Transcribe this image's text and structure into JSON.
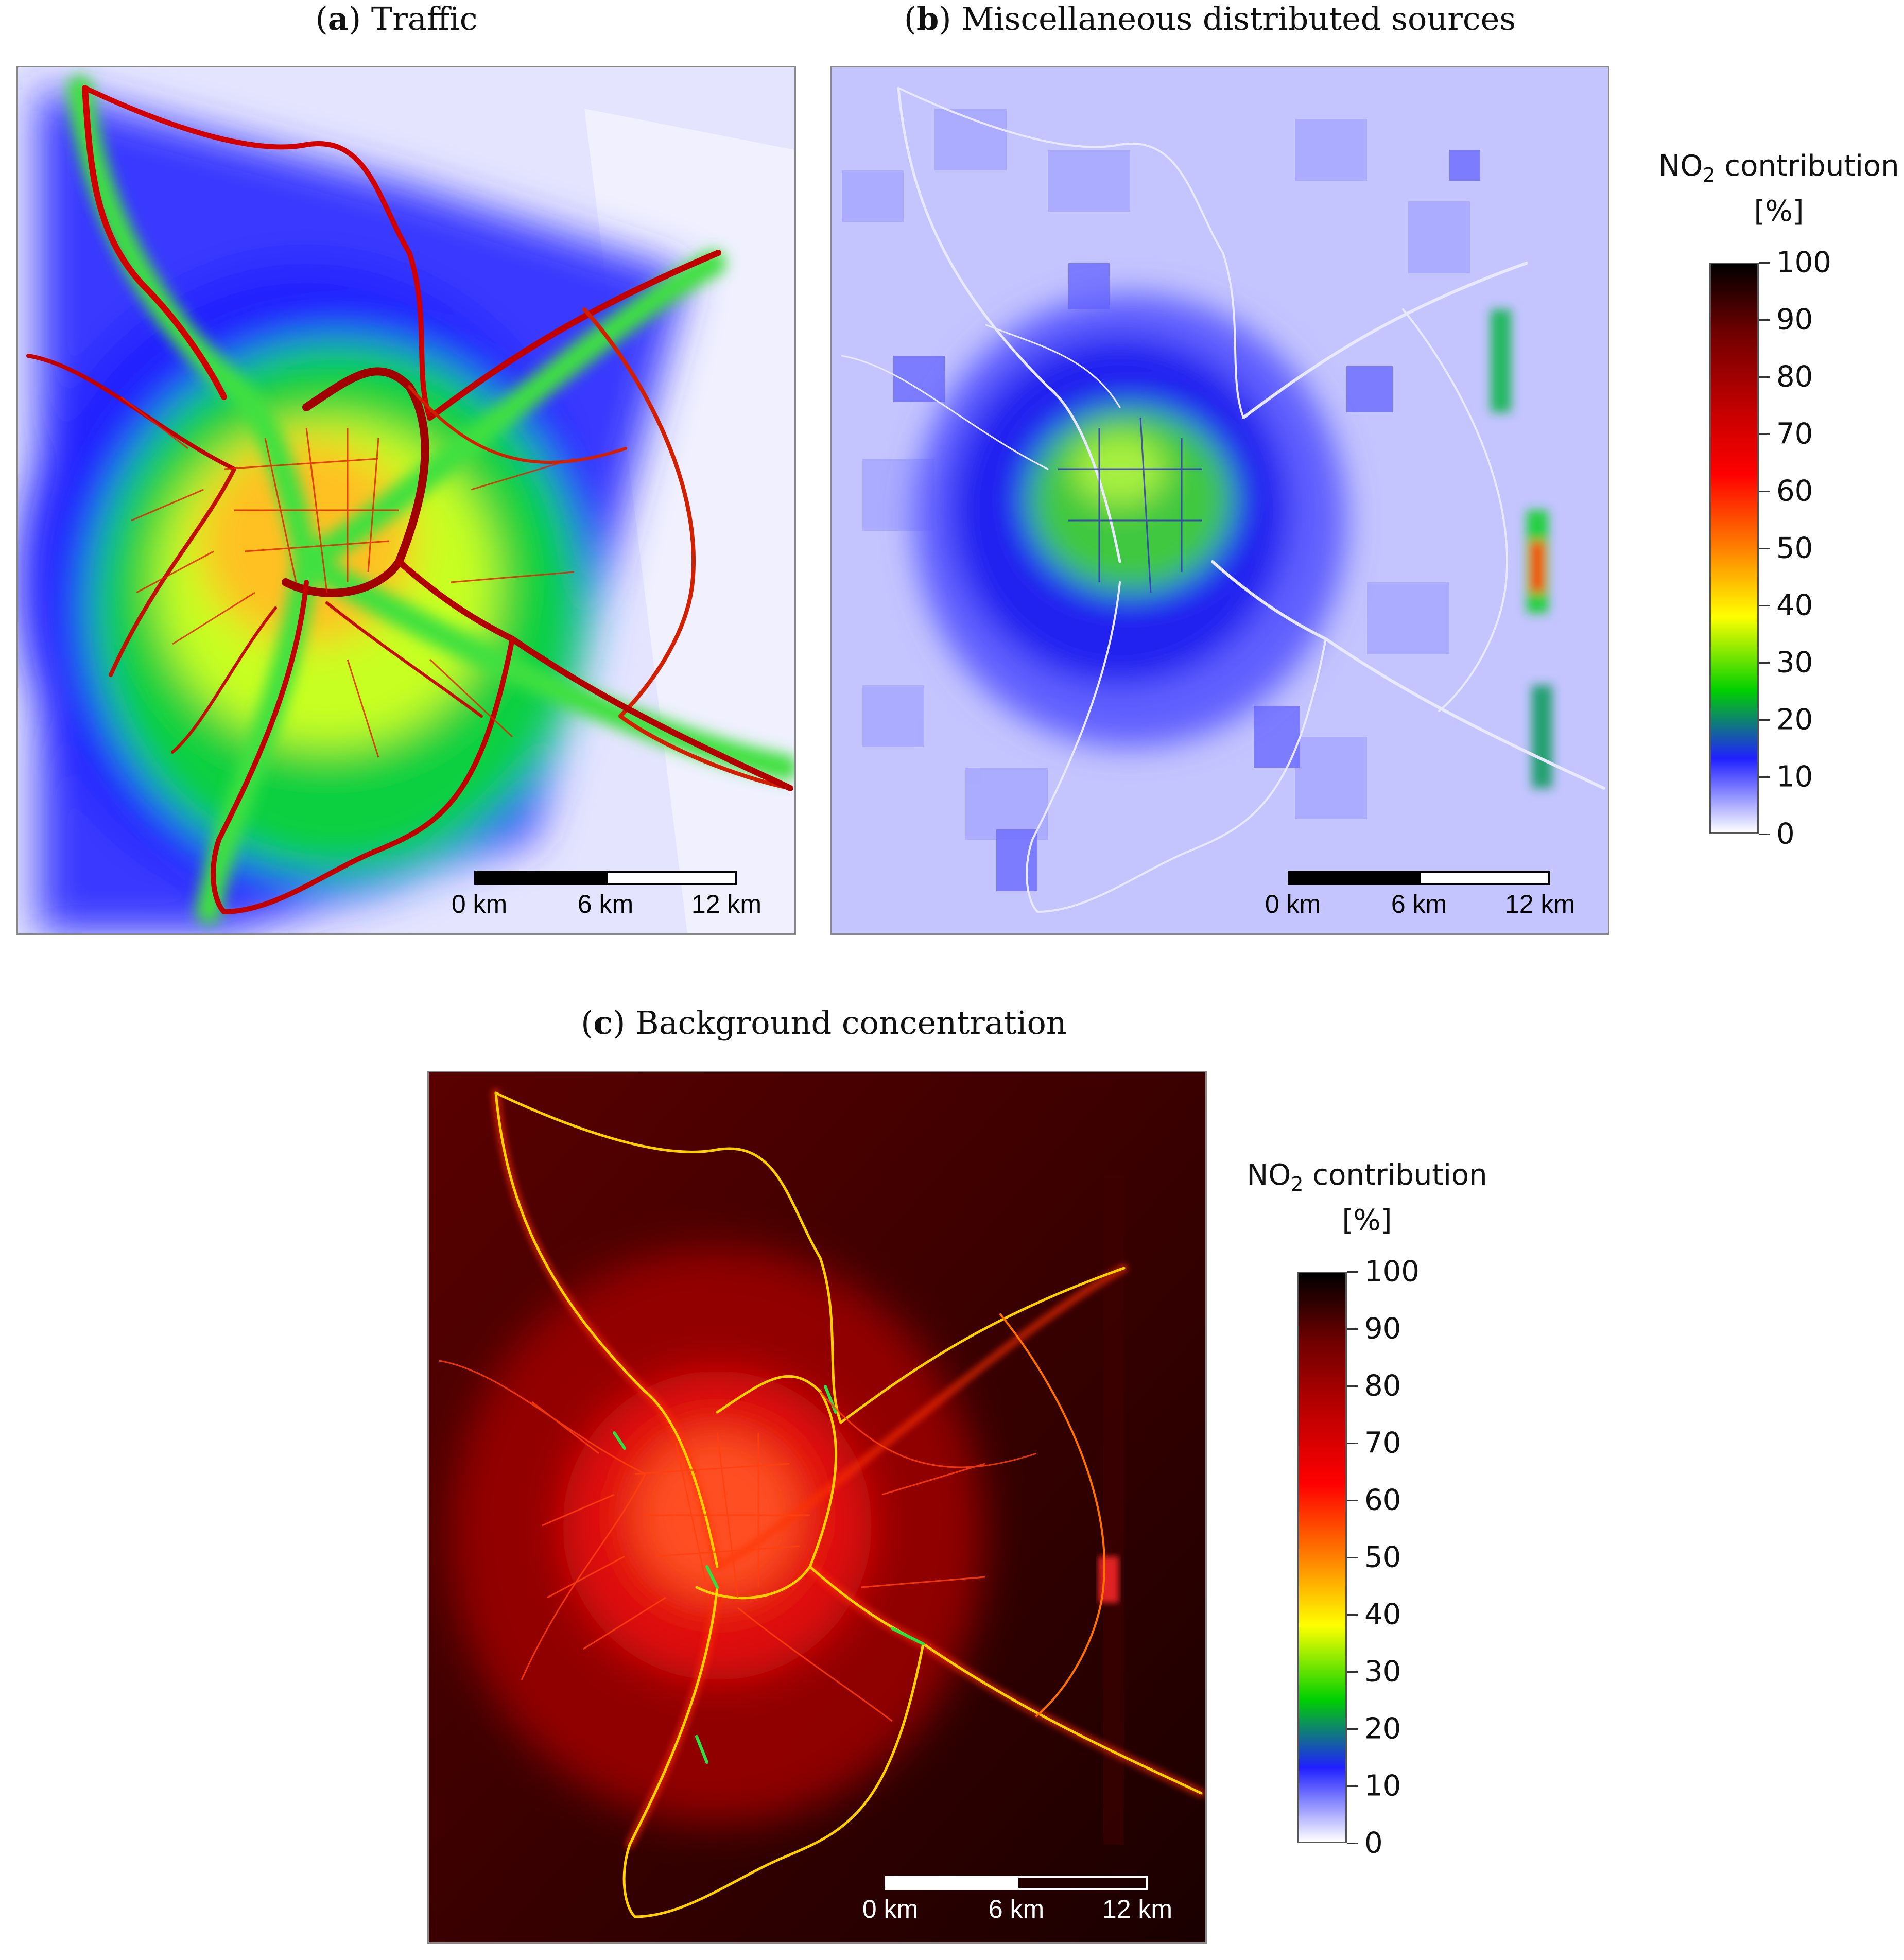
{
  "panels": {
    "a": {
      "letter": "a",
      "title": "Traffic"
    },
    "b": {
      "letter": "b",
      "title": "Miscellaneous distributed sources"
    },
    "c": {
      "letter": "c",
      "title": "Background concentration"
    }
  },
  "scale_bar": {
    "labels": [
      "0 km",
      "6 km",
      "12 km"
    ]
  },
  "legend": {
    "title_main": "NO",
    "title_sub": "2",
    "title_rest": " contribution",
    "unit": "[%]",
    "ticks": [
      "100",
      "90",
      "80",
      "70",
      "60",
      "50",
      "40",
      "30",
      "20",
      "10",
      "0"
    ],
    "colors": [
      "#ffffff",
      "#2020ff",
      "#00d000",
      "#ffff00",
      "#ff8000",
      "#ff0000",
      "#c00000",
      "#700000",
      "#000000"
    ]
  }
}
